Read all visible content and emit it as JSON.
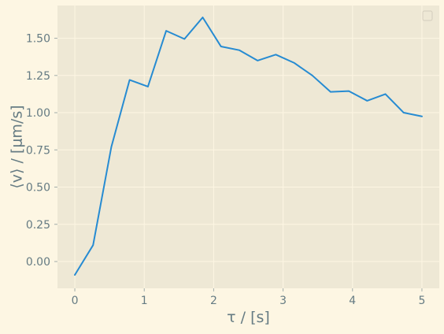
{
  "colors": {
    "page_background": "#fdf6e3",
    "plot_background": "#eee8d5",
    "grid": "#fdf6e3",
    "text": "#657b83",
    "line": "#268bd2",
    "legend_border": "#d3cdbd"
  },
  "chart_data": {
    "type": "line",
    "title": "",
    "xlabel": "τ / [s]",
    "ylabel": "⟨v⟩ / [μm/s]",
    "xlim": [
      -0.25,
      5.25
    ],
    "ylim": [
      -0.18,
      1.72
    ],
    "grid": true,
    "legend": {
      "placement": "top-right",
      "entries": []
    },
    "x_ticks": [
      {
        "value": 0,
        "label": "0"
      },
      {
        "value": 1,
        "label": "1"
      },
      {
        "value": 2,
        "label": "2"
      },
      {
        "value": 3,
        "label": "3"
      },
      {
        "value": 4,
        "label": "4"
      },
      {
        "value": 5,
        "label": "5"
      }
    ],
    "y_ticks": [
      {
        "value": 0,
        "label": "0.00"
      },
      {
        "value": 0.25,
        "label": "0.25"
      },
      {
        "value": 0.5,
        "label": "0.50"
      },
      {
        "value": 0.75,
        "label": "0.75"
      },
      {
        "value": 1.0,
        "label": "1.00"
      },
      {
        "value": 1.25,
        "label": "1.25"
      },
      {
        "value": 1.5,
        "label": "1.50"
      }
    ],
    "series": [
      {
        "x": [
          0,
          0.263,
          0.526,
          0.789,
          1.053,
          1.316,
          1.579,
          1.842,
          2.105,
          2.368,
          2.632,
          2.895,
          3.158,
          3.421,
          3.684,
          3.947,
          4.211,
          4.474,
          4.737,
          5.0
        ],
        "y": [
          -0.09,
          0.11,
          0.77,
          1.22,
          1.175,
          1.55,
          1.495,
          1.64,
          1.445,
          1.42,
          1.35,
          1.39,
          1.335,
          1.25,
          1.14,
          1.145,
          1.08,
          1.125,
          1.0,
          0.975
        ]
      }
    ]
  }
}
